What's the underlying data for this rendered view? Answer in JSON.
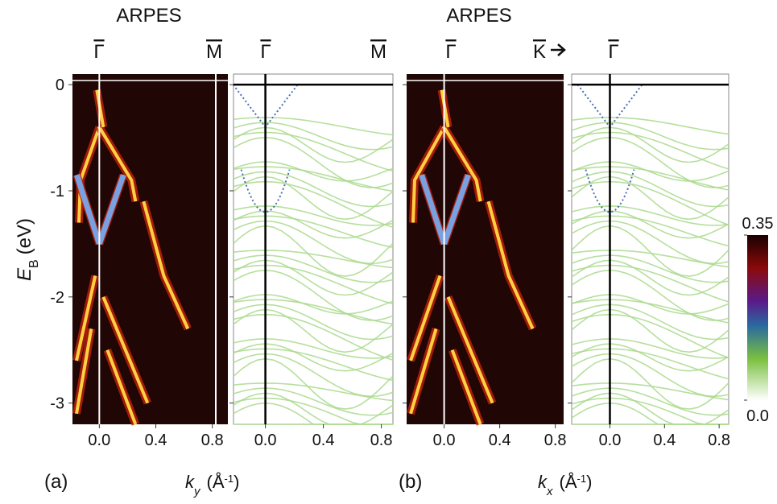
{
  "ylim": [
    -3.2,
    0.1
  ],
  "yticks": [
    0,
    -1,
    -2,
    -3
  ],
  "y_label": {
    "symbol": "E",
    "sub": "B",
    "unit": "(eV)"
  },
  "titles": [
    "ARPES",
    "ARPES"
  ],
  "panels": [
    {
      "kind": "arpes",
      "xlim": [
        -0.19,
        0.91
      ],
      "xticks": [
        {
          "value": 0,
          "label": "0.0"
        },
        0.4,
        0.8
      ],
      "points": [
        "Γ",
        "M"
      ]
    },
    {
      "kind": "theory",
      "xlim": [
        -0.22,
        0.88
      ],
      "xticks": [
        {
          "value": 0,
          "label": "0.0"
        },
        0.4,
        0.8
      ],
      "points": [
        "Γ",
        "M"
      ]
    },
    {
      "kind": "arpes",
      "xlim": [
        -0.27,
        0.86
      ],
      "xticks": [
        {
          "value": 0,
          "label": "0.0"
        },
        0.4,
        0.8
      ],
      "points": [
        "Γ",
        "K"
      ]
    },
    {
      "kind": "theory",
      "xlim": [
        -0.28,
        0.87
      ],
      "xticks": [
        {
          "value": 0,
          "label": "0.0"
        },
        0.4,
        0.8
      ],
      "points": [
        "Γ"
      ]
    }
  ],
  "panel_labels": [
    "(a)",
    "(b)"
  ],
  "x_labels": [
    {
      "symbol": "k",
      "sub": "y",
      "open": "(Å",
      "exp": "-1",
      "close": ")"
    },
    {
      "symbol": "k",
      "sub": "x",
      "open": "(Å",
      "exp": "-1",
      "close": ")"
    }
  ],
  "colorbar": {
    "lim": [
      0,
      0.35
    ],
    "ticks": [
      0.35,
      {
        "value": 0,
        "label": "0.0"
      }
    ]
  }
}
